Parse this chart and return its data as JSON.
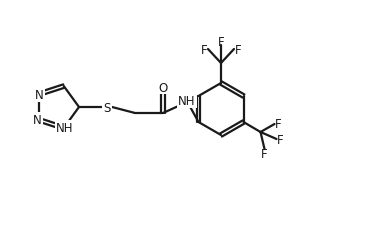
{
  "bg_color": "#ffffff",
  "line_color": "#1a1a1a",
  "line_width": 1.6,
  "font_size": 8.5,
  "figsize": [
    3.86,
    2.26
  ],
  "dpi": 100,
  "xlim": [
    0,
    3.86
  ],
  "ylim": [
    0,
    2.26
  ]
}
